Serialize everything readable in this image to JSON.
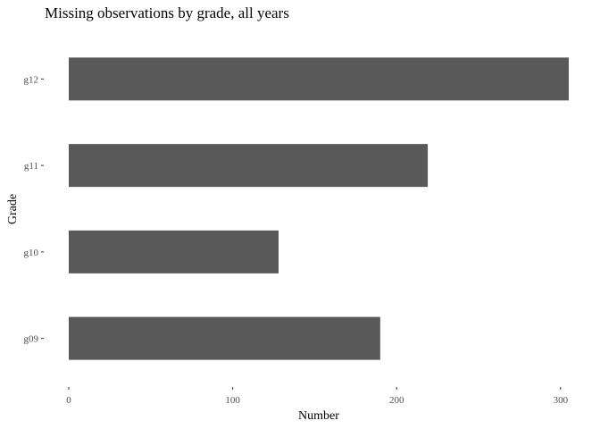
{
  "chart_data": {
    "type": "bar",
    "orientation": "horizontal",
    "title": "Missing observations by grade, all years",
    "xlabel": "Number",
    "ylabel": "Grade",
    "categories": [
      "g09",
      "g10",
      "g11",
      "g12"
    ],
    "values": [
      190,
      128,
      219,
      305
    ],
    "xlim": [
      0,
      305
    ],
    "xticks": [
      0,
      100,
      200,
      300
    ],
    "grid": false,
    "bar_color": "#595959"
  }
}
